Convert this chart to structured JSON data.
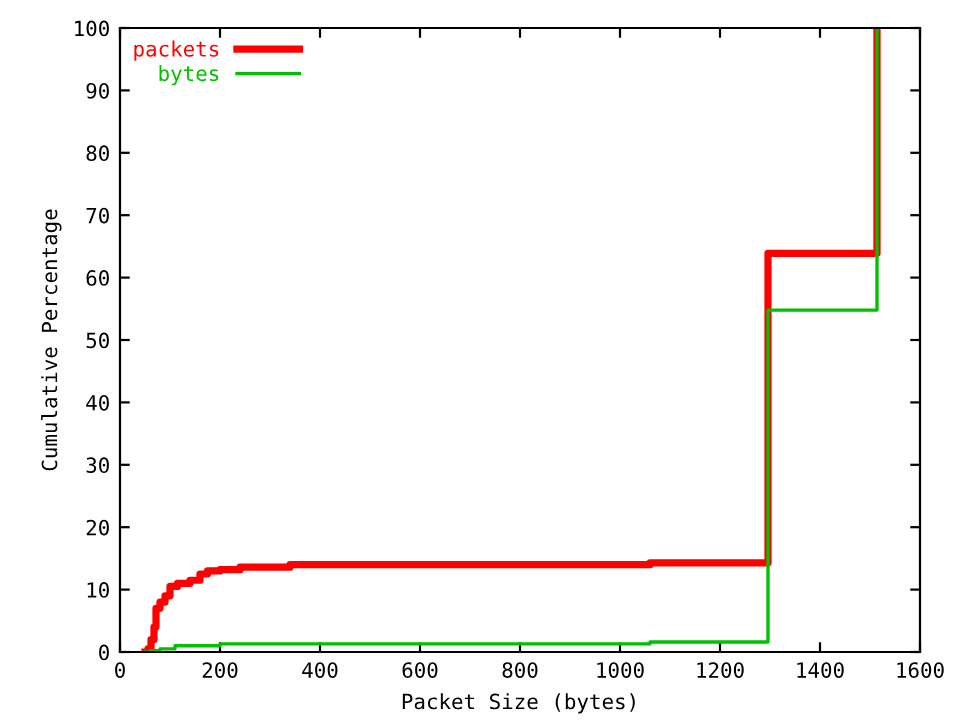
{
  "chart_data": {
    "type": "step",
    "xlabel": "Packet Size (bytes)",
    "ylabel": "Cumulative Percentage",
    "xlim": [
      0,
      1600
    ],
    "ylim": [
      0,
      100
    ],
    "xticks": [
      0,
      200,
      400,
      600,
      800,
      1000,
      1200,
      1400,
      1600
    ],
    "yticks": [
      0,
      10,
      20,
      30,
      40,
      50,
      60,
      70,
      80,
      90,
      100
    ],
    "grid": false,
    "legend": "top left",
    "series": [
      {
        "name": "packets",
        "color": "#ff0000",
        "x": [
          50,
          56,
          62,
          68,
          72,
          80,
          90,
          100,
          115,
          140,
          160,
          175,
          200,
          240,
          340,
          1060,
          1296,
          1514
        ],
        "values": [
          0,
          0.5,
          2,
          4,
          7,
          8,
          9,
          10.5,
          11,
          11.5,
          12.5,
          13,
          13.2,
          13.6,
          14,
          14.3,
          63.9,
          100
        ]
      },
      {
        "name": "bytes",
        "color": "#00c000",
        "x": [
          50,
          60,
          80,
          110,
          200,
          1060,
          1296,
          1514
        ],
        "values": [
          0,
          0.2,
          0.5,
          1,
          1.3,
          1.6,
          54.8,
          100
        ]
      }
    ]
  }
}
